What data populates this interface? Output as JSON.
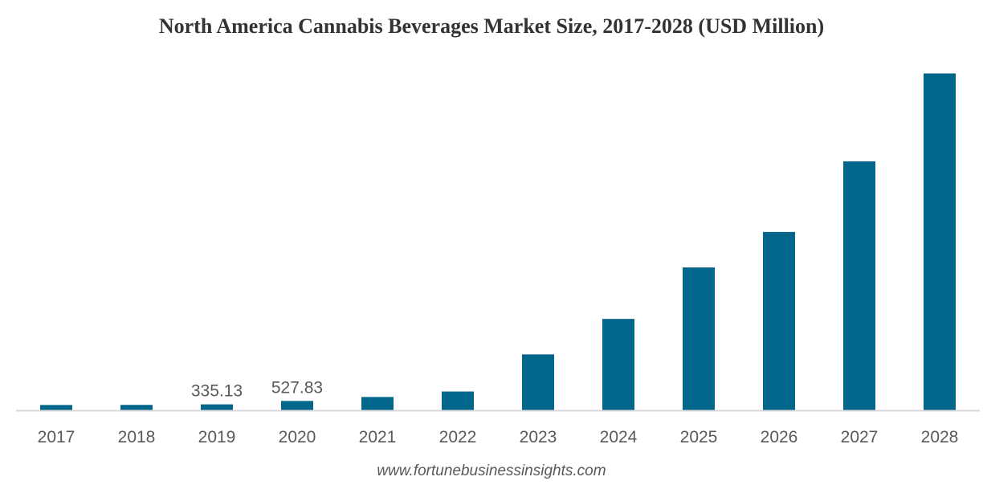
{
  "chart_data": {
    "type": "bar",
    "title": "North America Cannabis Beverages Market Size, 2017-2028 (USD Million)",
    "categories": [
      "2017",
      "2018",
      "2019",
      "2020",
      "2021",
      "2022",
      "2023",
      "2024",
      "2025",
      "2026",
      "2027",
      "2028"
    ],
    "values": [
      300,
      305,
      335.13,
      527.83,
      750,
      1060,
      3150,
      5150,
      8050,
      10050,
      14030,
      18980
    ],
    "data_labels": {
      "2019": "335.13",
      "2020": "527.83"
    },
    "xlabel": "",
    "ylabel": "",
    "ylim": [
      0,
      19500
    ],
    "grid": false,
    "bar_color": "#02658a",
    "axis_color": "#d9d9d9"
  },
  "source": "www.fortunebusinessinsights.com"
}
